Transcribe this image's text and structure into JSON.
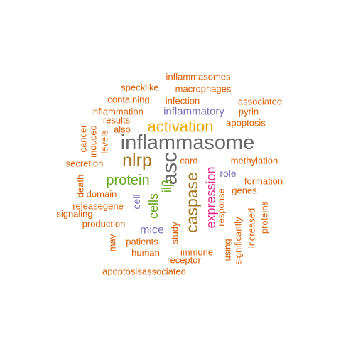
{
  "colors": {
    "orange": "#d95f02",
    "purple": "#7570b3",
    "pink": "#e7298a",
    "green": "#66a61e",
    "gold": "#e6ab02",
    "brown": "#a6761d",
    "gray": "#666666"
  },
  "words": [
    {
      "text": "inflammasome",
      "color": "gray"
    },
    {
      "text": "asc",
      "color": "gray"
    },
    {
      "text": "nlrp",
      "color": "brown"
    },
    {
      "text": "activation",
      "color": "gold"
    },
    {
      "text": "caspase",
      "color": "brown"
    },
    {
      "text": "protein",
      "color": "green"
    },
    {
      "text": "expression",
      "color": "pink"
    },
    {
      "text": "cells",
      "color": "green"
    },
    {
      "text": "ilβ",
      "color": "green"
    },
    {
      "text": "mice",
      "color": "purple"
    },
    {
      "text": "cell",
      "color": "purple"
    },
    {
      "text": "inflammatory",
      "color": "purple"
    },
    {
      "text": "role",
      "color": "purple"
    },
    {
      "text": "inflammasomes",
      "color": "orange"
    },
    {
      "text": "specklike",
      "color": "orange"
    },
    {
      "text": "macrophages",
      "color": "orange"
    },
    {
      "text": "containing",
      "color": "orange"
    },
    {
      "text": "infection",
      "color": "orange"
    },
    {
      "text": "associated",
      "color": "orange"
    },
    {
      "text": "inflammation",
      "color": "orange"
    },
    {
      "text": "pyrin",
      "color": "orange"
    },
    {
      "text": "results",
      "color": "orange"
    },
    {
      "text": "apoptosis",
      "color": "orange"
    },
    {
      "text": "also",
      "color": "orange"
    },
    {
      "text": "cancer",
      "color": "orange"
    },
    {
      "text": "induced",
      "color": "orange"
    },
    {
      "text": "levels",
      "color": "orange"
    },
    {
      "text": "methylation",
      "color": "orange"
    },
    {
      "text": "secretion",
      "color": "orange"
    },
    {
      "text": "card",
      "color": "orange"
    },
    {
      "text": "formation",
      "color": "orange"
    },
    {
      "text": "death",
      "color": "orange"
    },
    {
      "text": "domain",
      "color": "orange"
    },
    {
      "text": "genes",
      "color": "orange"
    },
    {
      "text": "releasegene",
      "color": "orange"
    },
    {
      "text": "signaling",
      "color": "orange"
    },
    {
      "text": "response",
      "color": "orange"
    },
    {
      "text": "production",
      "color": "orange"
    },
    {
      "text": "increased",
      "color": "orange"
    },
    {
      "text": "proteins",
      "color": "orange"
    },
    {
      "text": "may",
      "color": "orange"
    },
    {
      "text": "study",
      "color": "orange"
    },
    {
      "text": "patients",
      "color": "orange"
    },
    {
      "text": "using",
      "color": "orange"
    },
    {
      "text": "significantly",
      "color": "orange"
    },
    {
      "text": "human",
      "color": "orange"
    },
    {
      "text": "immune",
      "color": "orange"
    },
    {
      "text": "receptor",
      "color": "orange"
    },
    {
      "text": "apoptosisassociated",
      "color": "orange"
    }
  ]
}
